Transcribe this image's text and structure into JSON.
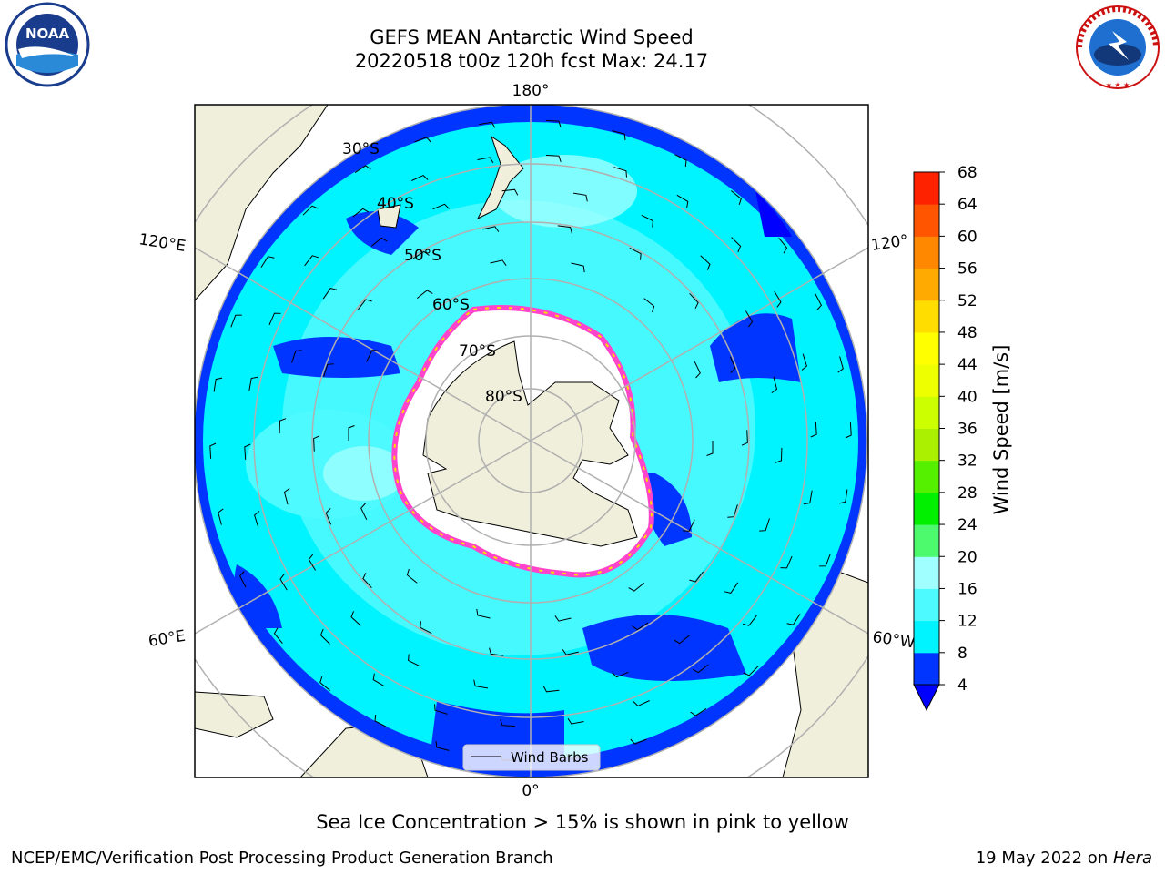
{
  "header": {
    "title_line1": "GEFS MEAN Antarctic Wind Speed",
    "title_line2": "20220518 t00z 120h fcst   Max: 24.17"
  },
  "logos": {
    "noaa_text": "NOAA",
    "noaa_ring_text": "NATIONAL OCEANIC AND ATMOSPHERIC ADMINISTRATION",
    "noaa_ring_text_bottom": "U.S. DEPARTMENT OF COMMERCE",
    "nws_ring_text": "NATIONAL WEATHER SERVICE"
  },
  "map": {
    "longitude_labels": {
      "top": "180°",
      "bottom": "0°",
      "upper_left": "120°E",
      "upper_right": "120°",
      "lower_left": "60°E",
      "lower_right": "60°W"
    },
    "latitude_labels": [
      "30°S",
      "40°S",
      "50°S",
      "60°S",
      "70°S",
      "80°S"
    ],
    "legend_label": "Wind Barbs"
  },
  "colorbar": {
    "label": "Wind Speed [m/s]",
    "ticks": [
      "4",
      "8",
      "12",
      "16",
      "20",
      "24",
      "28",
      "32",
      "36",
      "40",
      "44",
      "48",
      "52",
      "56",
      "60",
      "64",
      "68"
    ],
    "colors": [
      "#0034ff",
      "#00f4ff",
      "#4dfaff",
      "#a0ffff",
      "#4dfa6e",
      "#00f000",
      "#55f000",
      "#aaf000",
      "#ccff00",
      "#eeff00",
      "#ffff00",
      "#ffdd00",
      "#ffaa00",
      "#ff8800",
      "#ff5500",
      "#ff2200"
    ],
    "under_color": "#0000ff"
  },
  "colors": {
    "land": "#efefdb",
    "ice_shelf": "#ffffff",
    "sea_ice": "#ff44cc",
    "grid": "#b0b0b0"
  },
  "footer": {
    "caption": "Sea Ice Concentration > 15% is shown in pink to yellow",
    "left": "NCEP/EMC/Verification Post Processing Product Generation Branch",
    "right_prefix": "19 May 2022 on ",
    "right_italic": "Hera"
  }
}
